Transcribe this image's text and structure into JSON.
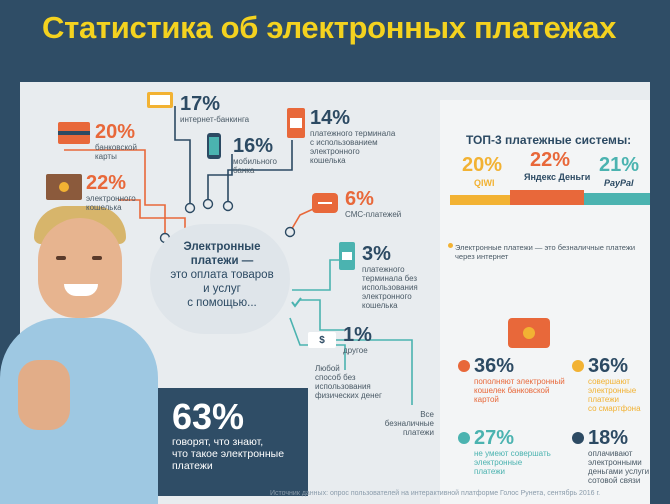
{
  "title": "Статистика об электронных платежах",
  "center": {
    "line1": "Электронные",
    "line2": "платежи —",
    "line3": "это оплата товаров",
    "line4": "и услуг",
    "line5": "с помощью..."
  },
  "methods": {
    "banking_card": {
      "pct": "20%",
      "l1": "банковской",
      "l2": "карты"
    },
    "e_wallet": {
      "pct": "22%",
      "l1": "электронного",
      "l2": "кошелька"
    },
    "internet_banking": {
      "pct": "17%",
      "l1": "интернет-банкинга"
    },
    "mobile_bank": {
      "pct": "16%",
      "l1": "мобильного",
      "l2": "банка"
    },
    "terminal_wallet": {
      "pct": "14%",
      "l1": "платежного терминала",
      "l2": "с использованием",
      "l3": "электронного",
      "l4": "кошелька"
    },
    "sms": {
      "pct": "6%",
      "l1": "СМС-платежей"
    },
    "terminal_no_wallet": {
      "pct": "3%",
      "l1": "платежного",
      "l2": "терминала без",
      "l3": "использования",
      "l4": "электронного",
      "l5": "кошелька"
    },
    "other": {
      "pct": "1%",
      "l1": "другое"
    }
  },
  "any_method": {
    "l1": "Любой",
    "l2": "способ без",
    "l3": "использования",
    "l4": "физических денег"
  },
  "all_cashless": {
    "l1": "Все",
    "l2": "безналичные",
    "l3": "платежи"
  },
  "awareness": {
    "pct": "63%",
    "l1": "говорят, что знают,",
    "l2": "что такое электронные",
    "l3": "платежи"
  },
  "top3": {
    "title": "ТОП-3 платежные системы:",
    "items": [
      {
        "pct": "20%",
        "name": "QIWI",
        "color": "#f2b233",
        "share": 0.2
      },
      {
        "pct": "22%",
        "name": "Яндекс Деньги",
        "color": "#e8683a",
        "share": 0.22
      },
      {
        "pct": "21%",
        "name": "PayPal",
        "color": "#4bb3b0",
        "share": 0.21
      }
    ]
  },
  "definition": "Электронные платежи — это безналичные платежи через интернет",
  "wallet_stats": [
    {
      "pct": "36%",
      "l1": "пополняют электронный",
      "l2": "кошелек банковской",
      "l3": "картой",
      "color": "#e8683a"
    },
    {
      "pct": "36%",
      "l1": "совершают",
      "l2": "электронные",
      "l3": "платежи",
      "l4": "со смартфона",
      "color": "#f2b233"
    },
    {
      "pct": "27%",
      "l1": "не умеют совершать",
      "l2": "электронные",
      "l3": "платежи",
      "color": "#4bb3b0"
    },
    {
      "pct": "18%",
      "l1": "оплачивают",
      "l2": "электронными",
      "l3": "деньгами услуги",
      "l4": "сотовой связи",
      "color": "#2c4a63"
    }
  ],
  "source": "Источник данных: опрос пользователей на интерактивной платформе Голос Рунета, сентябрь 2016 г."
}
